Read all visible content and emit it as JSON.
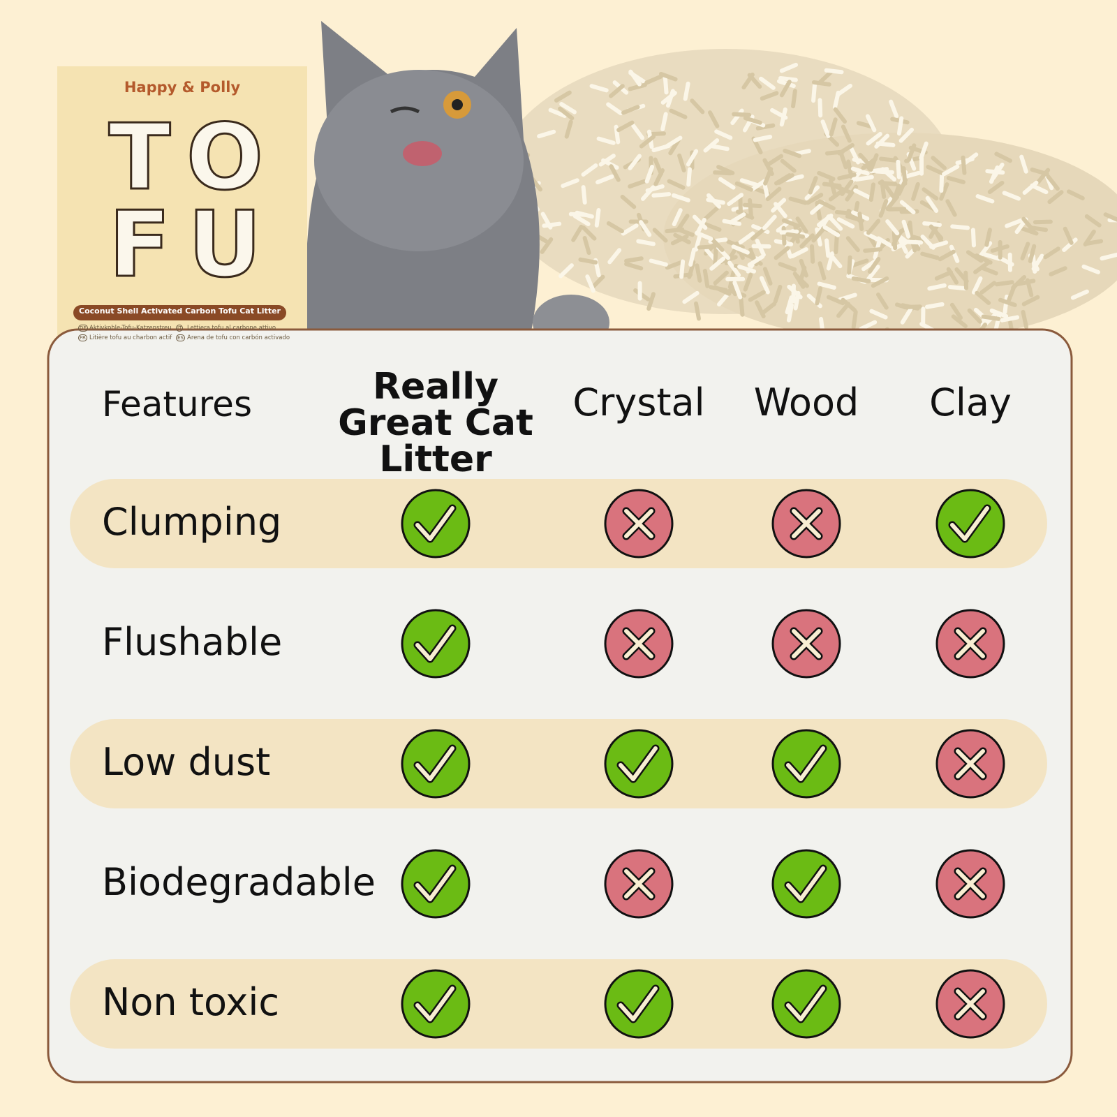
{
  "box": {
    "brand": "Happy & Polly",
    "logo": [
      "T",
      "O",
      "F",
      "U"
    ],
    "product": "Coconut Shell Activated Carbon Tofu Cat Litter",
    "languages": [
      {
        "code": "DE",
        "text": "Aktivkohle-Tofu-Katzenstreu"
      },
      {
        "code": "IT",
        "text": "Lettiera tofu al carbone attivo"
      },
      {
        "code": "FR",
        "text": "Litière tofu au charbon actif"
      },
      {
        "code": "ES",
        "text": "Arena de tofu con carbón activado"
      }
    ]
  },
  "table": {
    "headers": [
      "Features",
      "Really Great Cat Litter",
      "Crystal",
      "Wood",
      "Clay"
    ],
    "rows": [
      {
        "feature": "Clumping",
        "values": [
          true,
          false,
          false,
          true
        ]
      },
      {
        "feature": "Flushable",
        "values": [
          true,
          false,
          false,
          false
        ]
      },
      {
        "feature": "Low dust",
        "values": [
          true,
          true,
          true,
          false
        ]
      },
      {
        "feature": "Biodegradable",
        "values": [
          true,
          false,
          true,
          false
        ]
      },
      {
        "feature": "Non toxic",
        "values": [
          true,
          true,
          true,
          false
        ]
      }
    ]
  }
}
